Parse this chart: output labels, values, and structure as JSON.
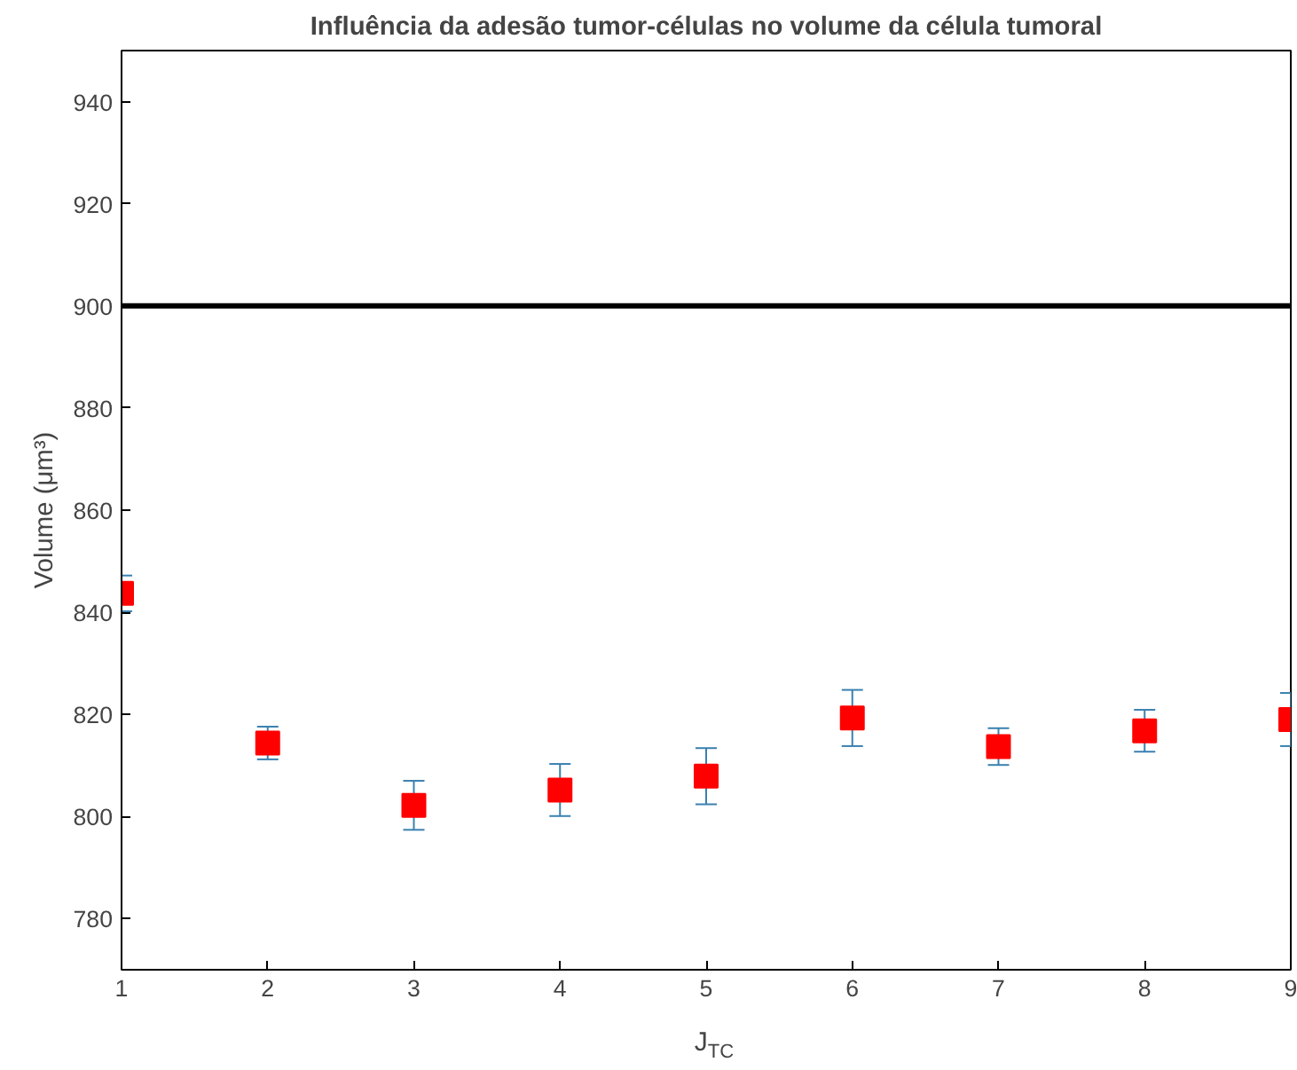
{
  "chart_data": {
    "type": "scatter",
    "title": "Influência da adesão tumor-células no volume da célula tumoral",
    "xlabel": "J$_{TC}$",
    "ylabel": "Volume (μm³)",
    "x": [
      1,
      2,
      3,
      4,
      5,
      6,
      7,
      8,
      9
    ],
    "series": [
      {
        "color": "#ff0000",
        "values": [
          843.7,
          814.4,
          802.2,
          805.2,
          807.9,
          819.3,
          813.7,
          816.8,
          819.0
        ],
        "errors": [
          3.5,
          3.2,
          4.8,
          5.1,
          5.5,
          5.5,
          3.6,
          4.1,
          5.2
        ]
      }
    ],
    "marker": "square",
    "xlim": [
      1,
      9
    ],
    "ylim": [
      770,
      950
    ],
    "xticks": [
      1,
      2,
      3,
      4,
      5,
      6,
      7,
      8,
      9
    ],
    "yticks": [
      780,
      800,
      820,
      840,
      860,
      880,
      900,
      920,
      940
    ],
    "ref_lines": [
      {
        "axis": "y",
        "value": 900,
        "color": "#000000"
      }
    ]
  }
}
